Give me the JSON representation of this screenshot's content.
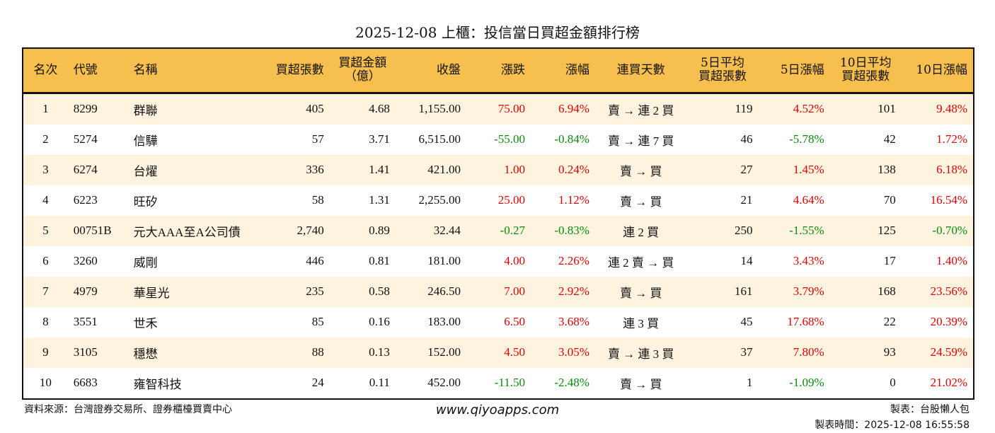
{
  "title": "2025-12-08 上櫃：投信當日買超金額排行榜",
  "columns": [
    "名次",
    "代號",
    "名稱",
    "買超張數",
    "買超金額\n（億）",
    "收盤",
    "漲跌",
    "漲幅",
    "連買天數",
    "5日平均\n買超張數",
    "5日漲幅",
    "10日平均\n買超張數",
    "10日漲幅"
  ],
  "colors": {
    "header_bg": "#F7BF4E",
    "stripe": "#FDF3DF",
    "up": "#e00000",
    "down": "#0a8a0a"
  },
  "rows": [
    [
      "1",
      "8299",
      "群聯",
      "405",
      "4.68",
      "1,155.00",
      "75.00",
      "6.94%",
      "賣 → 連 2 買",
      "119",
      "4.52%",
      "101",
      "9.48%"
    ],
    [
      "2",
      "5274",
      "信驊",
      "57",
      "3.71",
      "6,515.00",
      "-55.00",
      "-0.84%",
      "賣 → 連 7 買",
      "46",
      "-5.78%",
      "42",
      "1.72%"
    ],
    [
      "3",
      "6274",
      "台燿",
      "336",
      "1.41",
      "421.00",
      "1.00",
      "0.24%",
      "賣 → 買",
      "27",
      "1.45%",
      "138",
      "6.18%"
    ],
    [
      "4",
      "6223",
      "旺矽",
      "58",
      "1.31",
      "2,255.00",
      "25.00",
      "1.12%",
      "賣 → 買",
      "21",
      "4.64%",
      "70",
      "16.54%"
    ],
    [
      "5",
      "00751B",
      "元大AAA至A公司債",
      "2,740",
      "0.89",
      "32.44",
      "-0.27",
      "-0.83%",
      "連 2 買",
      "250",
      "-1.55%",
      "125",
      "-0.70%"
    ],
    [
      "6",
      "3260",
      "威剛",
      "446",
      "0.81",
      "181.00",
      "4.00",
      "2.26%",
      "連 2 賣 → 買",
      "14",
      "3.43%",
      "17",
      "1.40%"
    ],
    [
      "7",
      "4979",
      "華星光",
      "235",
      "0.58",
      "246.50",
      "7.00",
      "2.92%",
      "賣 → 買",
      "161",
      "3.79%",
      "168",
      "23.56%"
    ],
    [
      "8",
      "3551",
      "世禾",
      "85",
      "0.16",
      "183.00",
      "6.50",
      "3.68%",
      "連 3 買",
      "45",
      "17.68%",
      "22",
      "20.39%"
    ],
    [
      "9",
      "3105",
      "穩懋",
      "88",
      "0.13",
      "152.00",
      "4.50",
      "3.05%",
      "賣 → 連 3 買",
      "37",
      "7.80%",
      "93",
      "24.59%"
    ],
    [
      "10",
      "6683",
      "雍智科技",
      "24",
      "0.11",
      "452.00",
      "-11.50",
      "-2.48%",
      "賣 → 買",
      "1",
      "-1.09%",
      "0",
      "21.02%"
    ]
  ],
  "footer": {
    "source": "資料來源：台灣證券交易所、證券櫃檯買賣中心",
    "website": "www.qiyoapps.com",
    "maker": "製表：台股懶人包",
    "time": "製表時間：2025-12-08 16:55:58"
  }
}
